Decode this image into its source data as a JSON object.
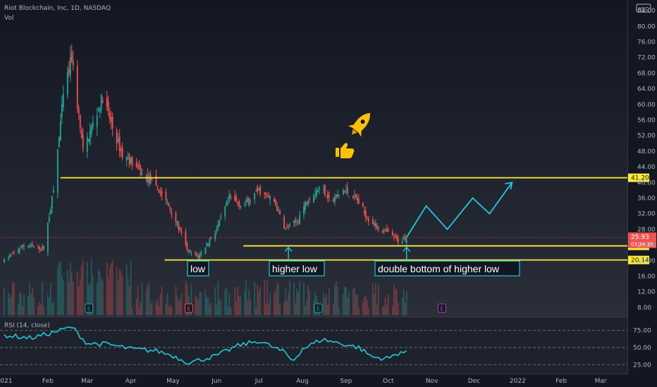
{
  "header": {
    "symbol": "Riot Blockchain, Inc, 1D, NASDAQ",
    "volume_label": "Vol",
    "currency": "USD"
  },
  "rsi": {
    "label": "RSI (14, close)",
    "levels": [
      "75.00",
      "50.00",
      "25.00"
    ]
  },
  "colors": {
    "up": "#26a69a",
    "down": "#ef5350",
    "line": "#ffeb3b",
    "projection": "#26c6da",
    "rsi": "#26c6da",
    "price_badge": "#ef5350",
    "line_badge": "#ffeb3b"
  },
  "annotations": {
    "low": "low",
    "higher_low": "higher low",
    "double_bottom": "double bottom of higher low",
    "emoji_rocket": "rocket-icon",
    "emoji_thumb": "thumbs-up-icon"
  },
  "chart_data": {
    "type": "candlestick",
    "title": "",
    "x_ticks": [
      "2021",
      "Feb",
      "Mar",
      "Apr",
      "May",
      "Jun",
      "Jul",
      "Aug",
      "Sep",
      "Oct",
      "Nov",
      "Dec",
      "2022",
      "Feb",
      "Mar"
    ],
    "y_ticks": [
      "84.00",
      "80.00",
      "76.00",
      "72.00",
      "68.00",
      "64.00",
      "60.00",
      "56.00",
      "52.00",
      "48.00",
      "44.00",
      "40.00",
      "36.00",
      "32.00",
      "28.00",
      "24.00",
      "20.00",
      "16.00",
      "12.00",
      "8.00"
    ],
    "ylim": [
      6,
      86
    ],
    "horizontal_lines": [
      {
        "name": "resistance",
        "value": 41.2,
        "label": "41.20"
      },
      {
        "name": "higher-low-support",
        "value": 23.76,
        "label": "23.76"
      },
      {
        "name": "low-support",
        "value": 20.14,
        "label": "20.14"
      }
    ],
    "last_price": {
      "value": 25.93,
      "label": "25.93",
      "countdown": "03:39:39"
    },
    "close_path": [
      {
        "date": "2021-01-01",
        "close": 20
      },
      {
        "date": "2021-01-15",
        "close": 24
      },
      {
        "date": "2021-01-29",
        "close": 23
      },
      {
        "date": "2021-02-05",
        "close": 38
      },
      {
        "date": "2021-02-12",
        "close": 62
      },
      {
        "date": "2021-02-18",
        "close": 72
      },
      {
        "date": "2021-02-26",
        "close": 48
      },
      {
        "date": "2021-03-04",
        "close": 54
      },
      {
        "date": "2021-03-12",
        "close": 62
      },
      {
        "date": "2021-03-19",
        "close": 54
      },
      {
        "date": "2021-03-26",
        "close": 47
      },
      {
        "date": "2021-04-02",
        "close": 45
      },
      {
        "date": "2021-04-09",
        "close": 42
      },
      {
        "date": "2021-04-16",
        "close": 40
      },
      {
        "date": "2021-04-23",
        "close": 37
      },
      {
        "date": "2021-05-01",
        "close": 32
      },
      {
        "date": "2021-05-12",
        "close": 22
      },
      {
        "date": "2021-05-19",
        "close": 21
      },
      {
        "date": "2021-06-01",
        "close": 28
      },
      {
        "date": "2021-06-10",
        "close": 36
      },
      {
        "date": "2021-06-20",
        "close": 34
      },
      {
        "date": "2021-07-01",
        "close": 38
      },
      {
        "date": "2021-07-12",
        "close": 35
      },
      {
        "date": "2021-07-20",
        "close": 28
      },
      {
        "date": "2021-07-28",
        "close": 30
      },
      {
        "date": "2021-08-05",
        "close": 36
      },
      {
        "date": "2021-08-14",
        "close": 39
      },
      {
        "date": "2021-08-22",
        "close": 35
      },
      {
        "date": "2021-08-30",
        "close": 38
      },
      {
        "date": "2021-09-08",
        "close": 36
      },
      {
        "date": "2021-09-16",
        "close": 31
      },
      {
        "date": "2021-09-25",
        "close": 28
      },
      {
        "date": "2021-10-01",
        "close": 27
      },
      {
        "date": "2021-10-08",
        "close": 25
      },
      {
        "date": "2021-10-14",
        "close": 25.93
      }
    ],
    "projection": [
      {
        "date": "2021-10-14",
        "value": 25.93
      },
      {
        "date": "2021-10-28",
        "value": 34
      },
      {
        "date": "2021-11-12",
        "value": 28
      },
      {
        "date": "2021-11-30",
        "value": 36
      },
      {
        "date": "2021-12-12",
        "value": 32
      },
      {
        "date": "2021-12-28",
        "value": 40
      }
    ],
    "earnings_markers": [
      {
        "date": "2021-03-02",
        "label": "E"
      },
      {
        "date": "2021-05-12",
        "label": "E"
      },
      {
        "date": "2021-08-12",
        "label": "E"
      },
      {
        "date": "2021-11-08",
        "label": "E"
      }
    ],
    "rsi_path": [
      {
        "date": "2021-01-01",
        "value": 68
      },
      {
        "date": "2021-01-20",
        "value": 64
      },
      {
        "date": "2021-02-01",
        "value": 70
      },
      {
        "date": "2021-02-18",
        "value": 80
      },
      {
        "date": "2021-03-01",
        "value": 56
      },
      {
        "date": "2021-03-15",
        "value": 55
      },
      {
        "date": "2021-04-01",
        "value": 48
      },
      {
        "date": "2021-04-20",
        "value": 45
      },
      {
        "date": "2021-05-01",
        "value": 38
      },
      {
        "date": "2021-05-12",
        "value": 28
      },
      {
        "date": "2021-06-01",
        "value": 38
      },
      {
        "date": "2021-06-15",
        "value": 52
      },
      {
        "date": "2021-07-01",
        "value": 60
      },
      {
        "date": "2021-07-20",
        "value": 42
      },
      {
        "date": "2021-07-25",
        "value": 30
      },
      {
        "date": "2021-08-01",
        "value": 48
      },
      {
        "date": "2021-08-15",
        "value": 62
      },
      {
        "date": "2021-08-28",
        "value": 56
      },
      {
        "date": "2021-09-10",
        "value": 50
      },
      {
        "date": "2021-09-20",
        "value": 36
      },
      {
        "date": "2021-10-01",
        "value": 34
      },
      {
        "date": "2021-10-10",
        "value": 44
      },
      {
        "date": "2021-10-14",
        "value": 42
      }
    ]
  }
}
